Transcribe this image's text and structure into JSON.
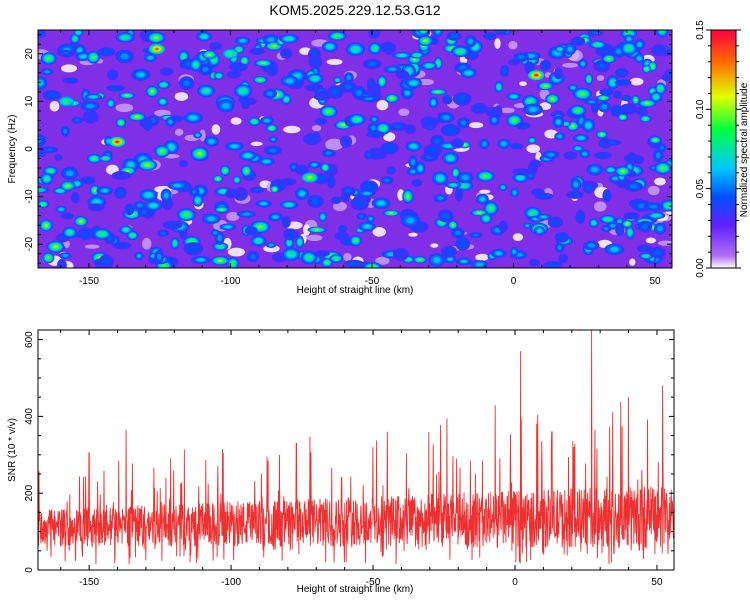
{
  "page": {
    "title": "KOM5.2025.229.12.53.G12"
  },
  "chart_data": [
    {
      "type": "heatmap",
      "title": "KOM5.2025.229.12.53.G12",
      "xlabel": "Height of straight line (km)",
      "ylabel": "Frequency (Hz)",
      "xlim": [
        -168,
        56
      ],
      "ylim": [
        -25,
        25
      ],
      "xticks": [
        -150,
        -100,
        -50,
        0,
        50
      ],
      "xtick_labels": [
        "-150",
        "-100",
        "-50",
        "0",
        "50"
      ],
      "yticks": [
        -20,
        -10,
        0,
        10,
        20
      ],
      "ytick_labels": [
        "-20",
        "-10",
        "0",
        "10",
        "20"
      ],
      "colorbar": {
        "label": "Normalized spectral amplitude",
        "range": [
          0,
          0.15
        ],
        "ticks": [
          0,
          0.05,
          0.1,
          0.15
        ],
        "tick_labels": [
          "0.00",
          "0.05",
          "0.10",
          "0.15"
        ]
      },
      "hot_spots": [
        {
          "x": -140,
          "y": 1.5,
          "value": 0.15
        },
        {
          "x": -126,
          "y": 21,
          "value": 0.14
        },
        {
          "x": 8,
          "y": 15.5,
          "value": 0.15
        },
        {
          "x": -100,
          "y": 20,
          "value": 0.09
        },
        {
          "x": -72,
          "y": -6,
          "value": 0.11
        },
        {
          "x": -158,
          "y": 10,
          "value": 0.09
        }
      ]
    },
    {
      "type": "line",
      "xlabel": "Height of straight line (km)",
      "ylabel": "SNR (10 * v/v)",
      "xlim": [
        -168,
        56
      ],
      "ylim": [
        0,
        625
      ],
      "xticks": [
        -150,
        -100,
        -50,
        0,
        50
      ],
      "xtick_labels": [
        "-150",
        "-100",
        "-50",
        "0",
        "50"
      ],
      "yticks": [
        0,
        200,
        400,
        600
      ],
      "ytick_labels": [
        "0",
        "200",
        "400",
        "600"
      ],
      "series_color": "#f03030",
      "baseline_mean_left": 110,
      "baseline_mean_right": 140,
      "peaks": [
        {
          "x": -150,
          "y": 305
        },
        {
          "x": -137,
          "y": 365
        },
        {
          "x": -103,
          "y": 315
        },
        {
          "x": -77,
          "y": 330
        },
        {
          "x": -50,
          "y": 320
        },
        {
          "x": -45,
          "y": 360
        },
        {
          "x": -24,
          "y": 395
        },
        {
          "x": 2,
          "y": 570
        },
        {
          "x": 13,
          "y": 360
        },
        {
          "x": 27,
          "y": 625
        },
        {
          "x": 40,
          "y": 450
        },
        {
          "x": 52,
          "y": 480
        }
      ]
    }
  ],
  "colors": {
    "series": "#f03030",
    "heat_bg": "#7f2fe6"
  }
}
